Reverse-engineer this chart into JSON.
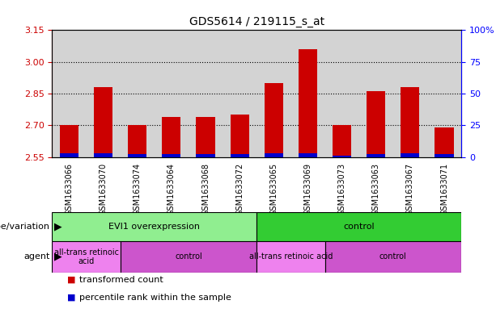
{
  "title": "GDS5614 / 219115_s_at",
  "samples": [
    "GSM1633066",
    "GSM1633070",
    "GSM1633074",
    "GSM1633064",
    "GSM1633068",
    "GSM1633072",
    "GSM1633065",
    "GSM1633069",
    "GSM1633073",
    "GSM1633063",
    "GSM1633067",
    "GSM1633071"
  ],
  "red_values": [
    2.7,
    2.88,
    2.7,
    2.74,
    2.74,
    2.75,
    2.9,
    3.06,
    2.7,
    2.86,
    2.88,
    2.69
  ],
  "blue_values": [
    2.566,
    2.566,
    2.562,
    2.563,
    2.563,
    2.562,
    2.566,
    2.568,
    2.557,
    2.564,
    2.566,
    2.562
  ],
  "ymin": 2.55,
  "ymax": 3.15,
  "yticks_left": [
    2.55,
    2.7,
    2.85,
    3.0,
    3.15
  ],
  "yticks_right_vals": [
    0,
    25,
    50,
    75,
    100
  ],
  "yticks_right_labels": [
    "0",
    "25",
    "50",
    "75",
    "100%"
  ],
  "bar_width": 0.55,
  "bar_color_red": "#cc0000",
  "bar_color_blue": "#0000cc",
  "col_bg_color": "#d3d3d3",
  "plot_bg": "#ffffff",
  "genotype_label": "genotype/variation",
  "genotype_groups": [
    {
      "text": "EVI1 overexpression",
      "start": 0,
      "end": 5,
      "color": "#90ee90"
    },
    {
      "text": "control",
      "start": 6,
      "end": 11,
      "color": "#33cc33"
    }
  ],
  "agent_label": "agent",
  "agent_groups": [
    {
      "text": "all-trans retinoic\nacid",
      "start": 0,
      "end": 1,
      "color": "#ee82ee"
    },
    {
      "text": "control",
      "start": 2,
      "end": 5,
      "color": "#cc55cc"
    },
    {
      "text": "all-trans retinoic acid",
      "start": 6,
      "end": 7,
      "color": "#ee82ee"
    },
    {
      "text": "control",
      "start": 8,
      "end": 11,
      "color": "#cc55cc"
    }
  ],
  "legend_items": [
    {
      "color": "#cc0000",
      "label": "transformed count"
    },
    {
      "color": "#0000cc",
      "label": "percentile rank within the sample"
    }
  ]
}
